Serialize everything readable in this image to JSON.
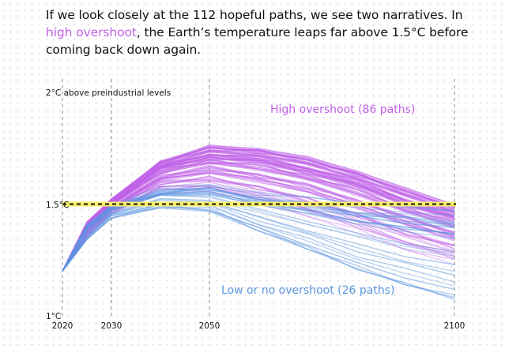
{
  "intro": {
    "p1": "If we look closely at the 112 hopeful paths, we see two narratives. In",
    "p2_highlight": "high overshoot",
    "p2_rest": ", the Earth’s temperature leaps far above 1.5°C before",
    "p3": "coming back down again."
  },
  "colors": {
    "high": "#c062e8",
    "low": "#5b95e0",
    "threshold": "#f7ee6a"
  },
  "chart_data": {
    "type": "line",
    "x_ticks": [
      "2020",
      "2030",
      "2050",
      "2100"
    ],
    "xlim": [
      2020,
      2100
    ],
    "ylim": [
      1.0,
      2.0
    ],
    "y_top_label": "2°C above preindustrial levels",
    "y_mid_label": "1.5°C",
    "y_bottom_label": "1°C",
    "threshold": 1.5,
    "series": [
      {
        "name": "High overshoot (86 paths)",
        "count": 86,
        "x": [
          2020,
          2025,
          2030,
          2040,
          2050,
          2060,
          2070,
          2080,
          2090,
          2100
        ],
        "envelope_high": [
          1.2,
          1.42,
          1.52,
          1.69,
          1.76,
          1.75,
          1.71,
          1.65,
          1.57,
          1.5
        ],
        "envelope_low": [
          1.2,
          1.35,
          1.46,
          1.56,
          1.56,
          1.51,
          1.45,
          1.38,
          1.3,
          1.24
        ]
      },
      {
        "name": "Low or no overshoot (26 paths)",
        "count": 26,
        "x": [
          2020,
          2025,
          2030,
          2040,
          2050,
          2060,
          2070,
          2080,
          2090,
          2100
        ],
        "envelope_high": [
          1.2,
          1.41,
          1.49,
          1.57,
          1.58,
          1.55,
          1.53,
          1.51,
          1.49,
          1.48
        ],
        "envelope_low": [
          1.2,
          1.34,
          1.44,
          1.49,
          1.47,
          1.38,
          1.29,
          1.2,
          1.12,
          1.06
        ]
      }
    ]
  }
}
